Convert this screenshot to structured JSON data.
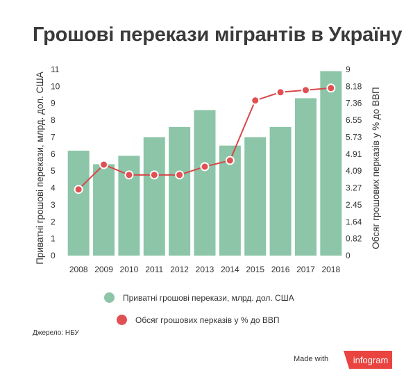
{
  "title": "Грошові перекази мігрантів в Україну",
  "chart_data": {
    "type": "bar+line",
    "categories": [
      "2008",
      "2009",
      "2010",
      "2011",
      "2012",
      "2013",
      "2014",
      "2015",
      "2016",
      "2017",
      "2018"
    ],
    "series": [
      {
        "name": "Приватні грошові перекази, млрд. дол. США",
        "type": "bar",
        "axis": "left",
        "values": [
          6.2,
          5.4,
          5.9,
          7.0,
          7.6,
          8.6,
          6.5,
          7.0,
          7.6,
          9.3,
          10.9
        ]
      },
      {
        "name": "Обсяг грошових перказів у % до ВВП",
        "type": "line",
        "axis": "right",
        "values": [
          3.2,
          4.4,
          3.9,
          3.9,
          3.9,
          4.3,
          4.6,
          7.5,
          7.9,
          8.0,
          8.1
        ]
      }
    ],
    "ylabel_left": "Приватні грошові перекази, млрд. дол. США",
    "ylabel_right": "Обсяг грошових перказів у % до ВВП",
    "ylim_left": [
      0,
      11
    ],
    "yticks_left": [
      "0",
      "1",
      "2",
      "3",
      "4",
      "5",
      "6",
      "7",
      "8",
      "9",
      "10",
      "11"
    ],
    "ylim_right": [
      0,
      9
    ],
    "yticks_right": [
      "0",
      "0.82",
      "1.64",
      "2.45",
      "3.27",
      "4.09",
      "4.91",
      "5.73",
      "6.55",
      "7.36",
      "8.18",
      "9"
    ],
    "grid": false,
    "legend_placement": "bottom",
    "colors": {
      "bar": "#8cc5a7",
      "line": "#d6474a",
      "marker_fill": "#e05053",
      "marker_stroke": "#ffffff"
    }
  },
  "legend": [
    {
      "label": "Приватні грошові перекази, млрд. дол. США",
      "color": "#8cc5a7"
    },
    {
      "label": "Обсяг грошових перказів у % до ВВП",
      "color": "#e05053"
    }
  ],
  "source": "Джерело: НБУ",
  "footer": {
    "made_with": "Made with",
    "brand": "infogram"
  }
}
